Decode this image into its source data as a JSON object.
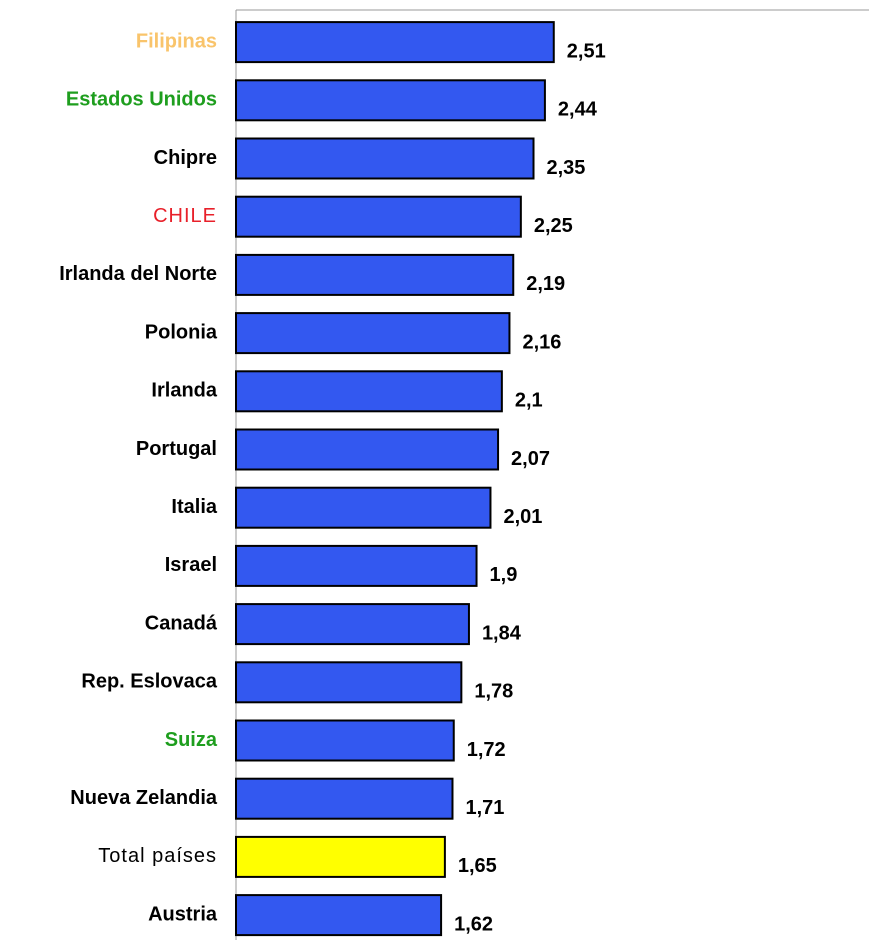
{
  "chart_data": {
    "type": "hbar",
    "categories": [
      "Filipinas",
      "Estados Unidos",
      "Chipre",
      "CHILE",
      "Irlanda del Norte",
      "Polonia",
      "Irlanda",
      "Portugal",
      "Italia",
      "Israel",
      "Canadá",
      "Rep. Eslovaca",
      "Suiza",
      "Nueva Zelandia",
      "Total países",
      "Austria"
    ],
    "values": [
      2.51,
      2.44,
      2.35,
      2.25,
      2.19,
      2.16,
      2.1,
      2.07,
      2.01,
      1.9,
      1.84,
      1.78,
      1.72,
      1.71,
      1.65,
      1.62
    ],
    "value_labels": [
      "2,51",
      "2,44",
      "2,35",
      "2,25",
      "2,19",
      "2,16",
      "2,1",
      "2,07",
      "2,01",
      "1,9",
      "1,84",
      "1,78",
      "1,72",
      "1,71",
      "1,65",
      "1,62"
    ],
    "colors": [
      "#3358f0",
      "#3358f0",
      "#3358f0",
      "#3358f0",
      "#3358f0",
      "#3358f0",
      "#3358f0",
      "#3358f0",
      "#3358f0",
      "#3358f0",
      "#3358f0",
      "#3358f0",
      "#3358f0",
      "#3358f0",
      "#ffff00",
      "#3358f0"
    ],
    "label_colors": [
      "#f9c46b",
      "#1e9e1e",
      "#000000",
      "#e8202a",
      "#000000",
      "#000000",
      "#000000",
      "#000000",
      "#000000",
      "#000000",
      "#000000",
      "#000000",
      "#1e9e1e",
      "#000000",
      "#000000",
      "#000000"
    ],
    "label_weights": [
      "bold",
      "bold",
      "bold",
      "normal",
      "bold",
      "bold",
      "bold",
      "bold",
      "bold",
      "bold",
      "bold",
      "bold",
      "bold",
      "bold",
      "normal",
      "bold"
    ],
    "xlim": [
      0,
      5
    ]
  }
}
